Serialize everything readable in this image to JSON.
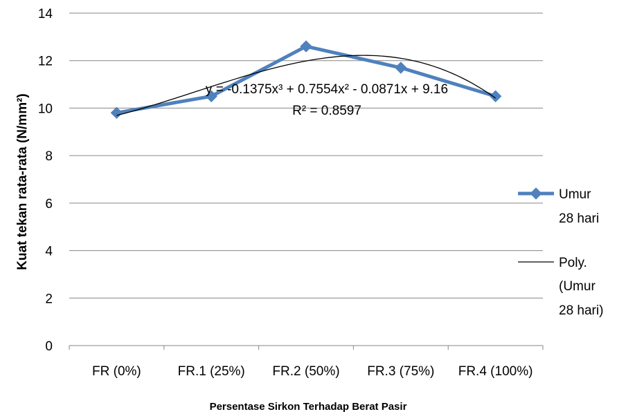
{
  "chart_data": {
    "type": "line",
    "categories": [
      "FR (0%)",
      "FR.1 (25%)",
      "FR.2 (50%)",
      "FR.3 (75%)",
      "FR.4 (100%)"
    ],
    "series": [
      {
        "name": "Umur 28 hari",
        "values": [
          9.8,
          10.5,
          12.6,
          11.7,
          10.5
        ],
        "color": "#4F81BD",
        "marker": "diamond"
      }
    ],
    "trendline": {
      "name": "Poly. (Umur 28 hari)",
      "type": "polynomial",
      "order": 3,
      "coefficients": [
        -0.1375,
        0.7554,
        -0.0871,
        9.16
      ],
      "equation_line1": "y = -0.1375x³ + 0.7554x² - 0.0871x + 9.16",
      "equation_line2": "R² = 0.8597",
      "color": "#000000"
    },
    "title": "",
    "xlabel": "Persentase Sirkon Terhadap Berat Pasir",
    "ylabel": "Kuat tekan rata-rata (N/mm²)",
    "ylim": [
      0,
      14
    ],
    "yticks": [
      0,
      2,
      4,
      6,
      8,
      10,
      12,
      14
    ],
    "grid": "horizontal",
    "legend": {
      "position": "right",
      "entries": [
        {
          "lines": [
            "Umur",
            "28 hari"
          ]
        },
        {
          "lines": [
            "Poly.",
            "(Umur",
            "28 hari)"
          ]
        }
      ]
    }
  }
}
